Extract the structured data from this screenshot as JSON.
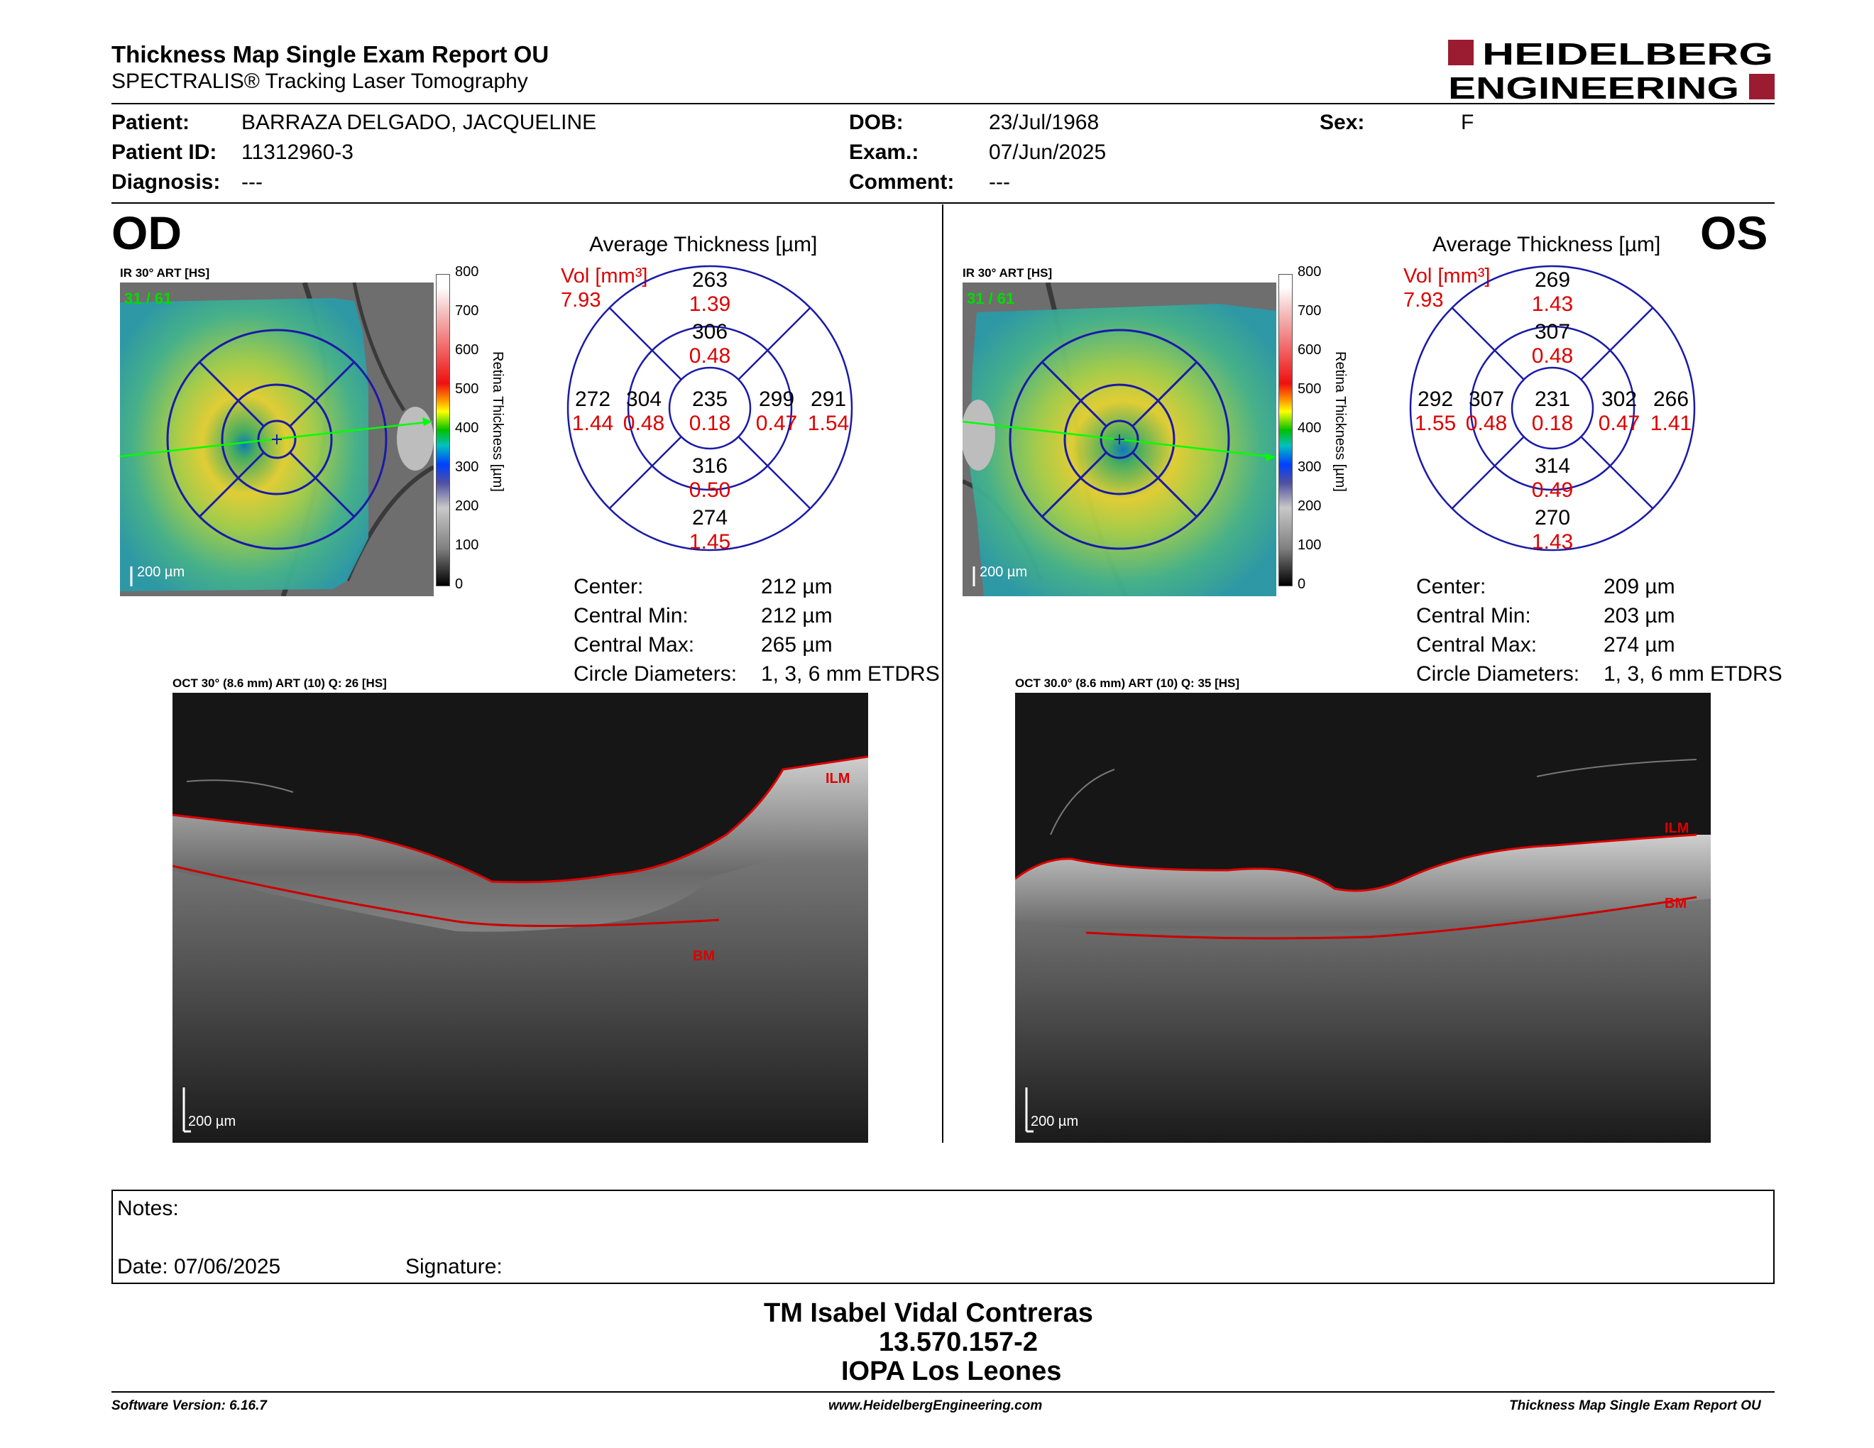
{
  "header": {
    "title": "Thickness Map Single Exam Report OU",
    "subtitle": "SPECTRALIS® Tracking Laser Tomography",
    "logo_line1": "HEIDELBERG",
    "logo_line2": "ENGINEERING"
  },
  "patient": {
    "patient_label": "Patient:",
    "patient_value": "BARRAZA DELGADO, JACQUELINE",
    "id_label": "Patient ID:",
    "id_value": "11312960-3",
    "diagnosis_label": "Diagnosis:",
    "diagnosis_value": "---",
    "dob_label": "DOB:",
    "dob_value": "23/Jul/1968",
    "exam_label": "Exam.:",
    "exam_value": "07/Jun/2025",
    "comment_label": "Comment:",
    "comment_value": "---",
    "sex_label": "Sex:",
    "sex_value": "F"
  },
  "colorbar": {
    "ticks": [
      "800",
      "700",
      "600",
      "500",
      "400",
      "300",
      "200",
      "100",
      "0"
    ],
    "title": "Retina Thickness [µm]"
  },
  "od": {
    "eye_label": "OD",
    "ir_label": "IR 30° ART [HS]",
    "frames": "31 / 61",
    "map_scale": "200 µm",
    "avg_title": "Average Thickness [µm]",
    "vol_label": "Vol [mm³]",
    "vol_total": "7.93",
    "center": {
      "t": "235",
      "v": "0.18"
    },
    "inner_sup": {
      "t": "306",
      "v": "0.48"
    },
    "inner_inf": {
      "t": "316",
      "v": "0.50"
    },
    "inner_left": {
      "t": "304",
      "v": "0.48"
    },
    "inner_right": {
      "t": "299",
      "v": "0.47"
    },
    "outer_sup": {
      "t": "263",
      "v": "1.39"
    },
    "outer_inf": {
      "t": "274",
      "v": "1.45"
    },
    "outer_left": {
      "t": "272",
      "v": "1.44"
    },
    "outer_right": {
      "t": "291",
      "v": "1.54"
    },
    "stats": [
      {
        "label": "Center:",
        "value": "212 µm"
      },
      {
        "label": "Central Min:",
        "value": "212 µm"
      },
      {
        "label": "Central Max:",
        "value": "265 µm"
      },
      {
        "label": "Circle Diameters:",
        "value": "1, 3, 6 mm ETDRS"
      }
    ],
    "oct_label": "OCT 30° (8.6 mm) ART (10) Q: 26 [HS]",
    "ilm": "ILM",
    "bm": "BM",
    "oct_scale": "200 µm"
  },
  "os": {
    "eye_label": "OS",
    "ir_label": "IR 30° ART [HS]",
    "frames": "31 / 61",
    "map_scale": "200 µm",
    "avg_title": "Average Thickness [µm]",
    "vol_label": "Vol [mm³]",
    "vol_total": "7.93",
    "center": {
      "t": "231",
      "v": "0.18"
    },
    "inner_sup": {
      "t": "307",
      "v": "0.48"
    },
    "inner_inf": {
      "t": "314",
      "v": "0.49"
    },
    "inner_left": {
      "t": "307",
      "v": "0.48"
    },
    "inner_right": {
      "t": "302",
      "v": "0.47"
    },
    "outer_sup": {
      "t": "269",
      "v": "1.43"
    },
    "outer_inf": {
      "t": "270",
      "v": "1.43"
    },
    "outer_left": {
      "t": "292",
      "v": "1.55"
    },
    "outer_right": {
      "t": "266",
      "v": "1.41"
    },
    "stats": [
      {
        "label": "Center:",
        "value": "209 µm"
      },
      {
        "label": "Central Min:",
        "value": "203 µm"
      },
      {
        "label": "Central Max:",
        "value": "274 µm"
      },
      {
        "label": "Circle Diameters:",
        "value": "1, 3, 6 mm ETDRS"
      }
    ],
    "oct_label": "OCT 30.0° (8.6 mm) ART (10) Q: 35 [HS]",
    "ilm": "ILM",
    "bm": "BM",
    "oct_scale": "200 µm"
  },
  "notes": {
    "notes_label": "Notes:",
    "date_label": "Date: 07/06/2025",
    "signature_label": "Signature:"
  },
  "signature_block": {
    "name": "TM Isabel Vidal Contreras",
    "rut": "13.570.157-2",
    "clinic": "IOPA Los Leones"
  },
  "footer": {
    "software": "Software Version: 6.16.7",
    "website": "www.HeidelbergEngineering.com",
    "report_name": "Thickness Map Single Exam Report OU"
  },
  "colors": {
    "brand_red": "#9b1b30",
    "volume_red": "#dd0000",
    "grid_blue": "#1a1aa8"
  }
}
